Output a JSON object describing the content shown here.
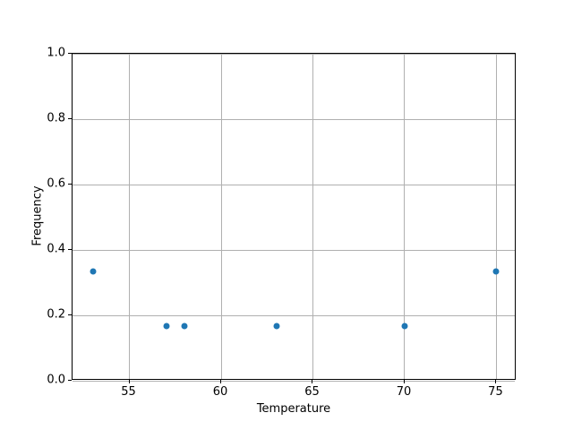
{
  "chart_data": {
    "type": "scatter",
    "x": [
      53,
      57,
      58,
      63,
      70,
      75
    ],
    "y": [
      0.333,
      0.167,
      0.167,
      0.167,
      0.167,
      0.333
    ],
    "title": "",
    "xlabel": "Temperature",
    "ylabel": "Frequency",
    "x_ticks": [
      55,
      60,
      65,
      70,
      75
    ],
    "x_tick_labels": [
      "55",
      "60",
      "65",
      "70",
      "75"
    ],
    "y_ticks": [
      0.0,
      0.2,
      0.4,
      0.6,
      0.8,
      1.0
    ],
    "y_tick_labels": [
      "0.0",
      "0.2",
      "0.4",
      "0.6",
      "0.8",
      "1.0"
    ],
    "xlim": [
      51.9,
      76.1
    ],
    "ylim": [
      0.0,
      1.0
    ],
    "grid": true,
    "legend": false,
    "marker_color": "#1f77b4",
    "grid_color": "#b0b0b0",
    "spine_color": "#000000"
  }
}
